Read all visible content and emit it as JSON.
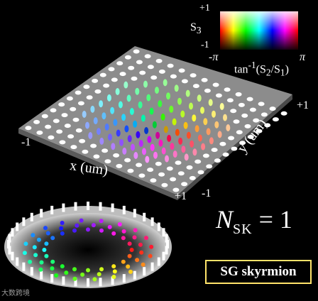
{
  "colorbar": {
    "y_label": "S",
    "y_label_sub": "3",
    "top_value": "+1",
    "bottom_value": "-1",
    "x_left": "-π",
    "x_right": "π",
    "x_title_pre": "tan",
    "x_title_sup": "-1",
    "x_title_body": "(S",
    "x_title_sub1": "2",
    "x_title_mid": "/S",
    "x_title_sub2": "1",
    "x_title_end": ")"
  },
  "plot": {
    "x_axis_label": "x (um)",
    "y_axis_label": "y (um)",
    "x_tick_left": "-1",
    "x_tick_right": "+1",
    "y_tick_near": "-1",
    "y_tick_far": "+1"
  },
  "equation": {
    "symbol": "N",
    "subscript": "SK",
    "rest": " = 1"
  },
  "badge": {
    "text": "SG skyrmion"
  },
  "watermark": {
    "text": "大数跨境"
  },
  "colors": {
    "badge_border": "#ffe36a",
    "plane": "#8c8c8c"
  }
}
